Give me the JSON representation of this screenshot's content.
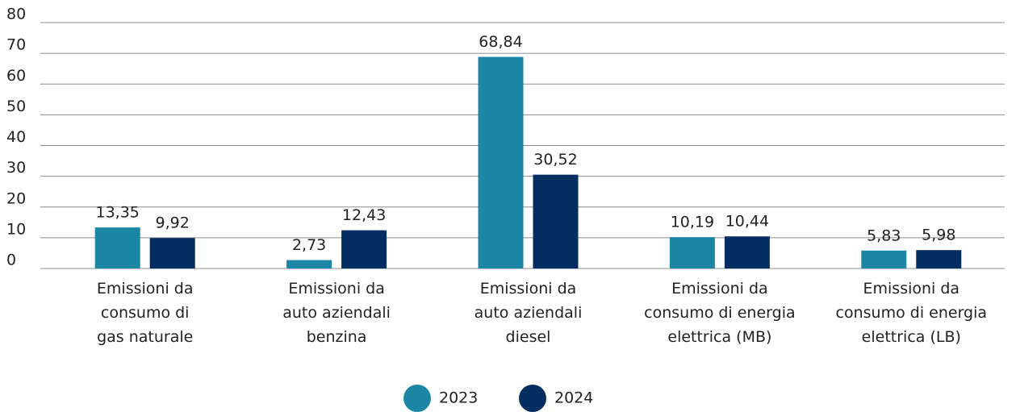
{
  "chart_data": {
    "type": "bar",
    "categories": [
      "Emissioni da\nconsumo di\ngas naturale",
      "Emissioni da\nauto aziendali\nbenzina",
      "Emissioni da\nauto aziendali\ndiesel",
      "Emissioni da\nconsumo di energia\nelettrica (MB)",
      "Emissioni da\nconsumo di energia\nelettrica (LB)"
    ],
    "series": [
      {
        "name": "2023",
        "color": "#1b87a4",
        "values": [
          13.35,
          2.73,
          68.84,
          10.19,
          5.83
        ],
        "value_labels": [
          "13,35",
          "2,73",
          "68,84",
          "10,19",
          "5,83"
        ]
      },
      {
        "name": "2024",
        "color": "#062d62",
        "values": [
          9.92,
          12.43,
          30.52,
          10.44,
          5.98
        ],
        "value_labels": [
          "9,92",
          "12,43",
          "30,52",
          "10,44",
          "5,98"
        ]
      }
    ],
    "ylim": [
      0,
      80
    ],
    "yticks": [
      0,
      10,
      20,
      30,
      40,
      50,
      60,
      70,
      80
    ],
    "grid": true,
    "legend": "bottom"
  }
}
